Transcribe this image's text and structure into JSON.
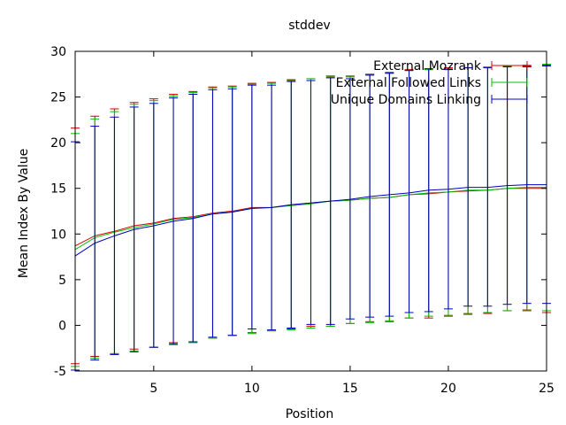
{
  "chart_data": {
    "type": "line",
    "title": "stddev",
    "xlabel": "Position",
    "ylabel": "Mean Index By Value",
    "xlim": [
      1,
      25
    ],
    "ylim": [
      -5,
      30
    ],
    "x_ticks": [
      5,
      10,
      15,
      20,
      25
    ],
    "y_ticks": [
      -5,
      0,
      5,
      10,
      15,
      20,
      25,
      30
    ],
    "grid": false,
    "legend_position": "top-right",
    "x": [
      1,
      2,
      3,
      4,
      5,
      6,
      7,
      8,
      9,
      10,
      11,
      12,
      13,
      14,
      15,
      16,
      17,
      18,
      19,
      20,
      21,
      22,
      23,
      24,
      25
    ],
    "series": [
      {
        "name": "External Mozrank",
        "color": "#d40000",
        "values": [
          8.7,
          9.8,
          10.3,
          10.9,
          11.2,
          11.7,
          11.9,
          12.3,
          12.5,
          12.9,
          12.9,
          13.2,
          13.4,
          13.6,
          13.7,
          13.9,
          14.0,
          14.3,
          14.4,
          14.6,
          14.7,
          14.8,
          15.0,
          15.0,
          15.0
        ],
        "upper": [
          21.6,
          22.9,
          23.7,
          24.4,
          24.8,
          25.3,
          25.6,
          26.1,
          26.2,
          26.5,
          26.6,
          26.9,
          27.0,
          27.3,
          27.3,
          27.5,
          27.7,
          28.0,
          28.0,
          28.2,
          28.2,
          28.3,
          28.4,
          28.4,
          28.5
        ],
        "lower": [
          -4.2,
          -3.4,
          -3.1,
          -2.6,
          -2.4,
          -1.9,
          -1.8,
          -1.4,
          -1.1,
          -0.8,
          -0.6,
          -0.4,
          -0.1,
          -0.1,
          0.2,
          0.4,
          0.4,
          0.8,
          0.8,
          1.0,
          1.2,
          1.3,
          1.6,
          1.6,
          1.4
        ]
      },
      {
        "name": "External Followed Links",
        "color": "#00c000",
        "values": [
          8.3,
          9.6,
          10.2,
          10.7,
          11.1,
          11.6,
          11.8,
          12.2,
          12.4,
          12.8,
          12.9,
          13.1,
          13.3,
          13.6,
          13.7,
          13.9,
          14.0,
          14.3,
          14.5,
          14.6,
          14.8,
          14.8,
          15.0,
          15.1,
          15.1
        ],
        "upper": [
          21.0,
          22.6,
          23.4,
          24.2,
          24.6,
          25.1,
          25.5,
          26.0,
          26.1,
          26.4,
          26.5,
          26.8,
          27.0,
          27.2,
          27.2,
          27.4,
          27.6,
          27.9,
          28.0,
          28.1,
          28.2,
          28.3,
          28.4,
          28.5,
          28.6
        ],
        "lower": [
          -4.5,
          -3.6,
          -3.1,
          -2.8,
          -2.4,
          -2.0,
          -1.9,
          -1.4,
          -1.1,
          -0.9,
          -0.6,
          -0.5,
          -0.3,
          -0.1,
          0.2,
          0.3,
          0.5,
          0.8,
          1.0,
          1.1,
          1.3,
          1.4,
          1.6,
          1.7,
          1.6
        ]
      },
      {
        "name": "Unique Domains Linking",
        "color": "#0000c0",
        "values": [
          7.6,
          9.0,
          9.8,
          10.5,
          10.9,
          11.4,
          11.7,
          12.2,
          12.4,
          12.8,
          12.9,
          13.2,
          13.4,
          13.6,
          13.8,
          14.1,
          14.3,
          14.5,
          14.8,
          14.9,
          15.1,
          15.1,
          15.3,
          15.4,
          15.4
        ],
        "upper": [
          20.1,
          21.8,
          22.8,
          23.9,
          24.3,
          24.9,
          25.3,
          25.8,
          25.9,
          26.3,
          26.3,
          26.7,
          26.8,
          27.1,
          27.0,
          27.4,
          27.6,
          27.9,
          28.1,
          28.0,
          28.2,
          28.2,
          28.3,
          28.3,
          28.4
        ],
        "lower": [
          -4.9,
          -3.8,
          -3.2,
          -2.9,
          -2.4,
          -2.1,
          -1.8,
          -1.3,
          -1.1,
          -0.4,
          -0.5,
          -0.3,
          0.1,
          0.1,
          0.7,
          0.9,
          1.0,
          1.4,
          1.5,
          1.8,
          2.1,
          2.1,
          2.3,
          2.4,
          2.4
        ]
      }
    ]
  }
}
